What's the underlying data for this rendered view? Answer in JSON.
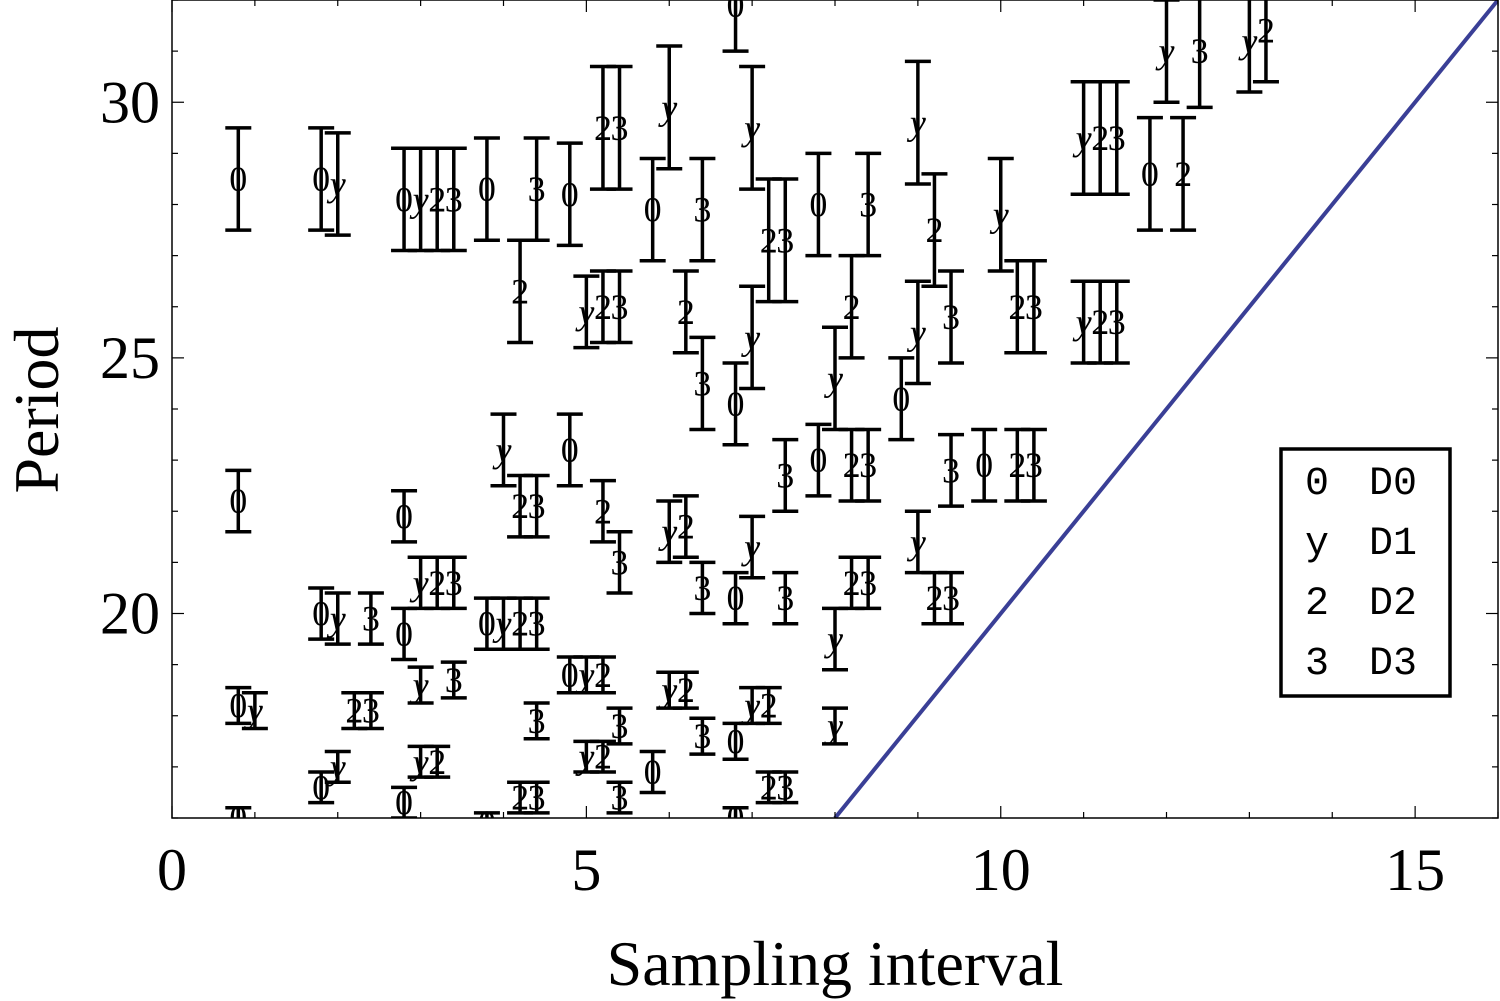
{
  "chart_data": {
    "type": "scatter",
    "xlabel": "Sampling interval",
    "ylabel": "Period",
    "xlim": [
      0,
      16
    ],
    "ylim": [
      16,
      32
    ],
    "xticks": [
      0,
      5,
      10,
      15
    ],
    "yticks": [
      20,
      25,
      30
    ],
    "minor_step": 1,
    "grid": false,
    "legend": {
      "position": "right",
      "entries": [
        {
          "symbol": "0",
          "label": "D0"
        },
        {
          "symbol": "y",
          "label": "D1"
        },
        {
          "symbol": "2",
          "label": "D2"
        },
        {
          "symbol": "3",
          "label": "D3"
        }
      ]
    },
    "reference_line": {
      "type": "y = 2x",
      "color": "#3a3f96"
    },
    "series": [
      {
        "symbol": "0",
        "points": [
          [
            0.8,
            28.5,
            1.0
          ],
          [
            0.8,
            22.2,
            0.6
          ],
          [
            0.8,
            18.2,
            0.35
          ],
          [
            0.8,
            16.0,
            0.2
          ],
          [
            1.8,
            28.5,
            1.0
          ],
          [
            1.8,
            20.0,
            0.5
          ],
          [
            1.8,
            16.6,
            0.3
          ],
          [
            2.8,
            28.1,
            1.0
          ],
          [
            2.8,
            21.9,
            0.5
          ],
          [
            2.8,
            19.6,
            0.5
          ],
          [
            2.8,
            16.3,
            0.3
          ],
          [
            3.8,
            28.3,
            1.0
          ],
          [
            3.8,
            19.8,
            0.5
          ],
          [
            3.8,
            15.9,
            0.2
          ],
          [
            4.8,
            28.2,
            1.0
          ],
          [
            4.8,
            23.2,
            0.7
          ],
          [
            4.8,
            18.8,
            0.35
          ],
          [
            5.8,
            27.9,
            1.0
          ],
          [
            5.8,
            16.9,
            0.4
          ],
          [
            6.8,
            31.9,
            0.9
          ],
          [
            6.8,
            24.1,
            0.8
          ],
          [
            6.8,
            20.3,
            0.5
          ],
          [
            6.8,
            17.5,
            0.35
          ],
          [
            6.8,
            16.0,
            0.2
          ],
          [
            7.8,
            28.0,
            1.0
          ],
          [
            7.8,
            23.0,
            0.7
          ],
          [
            8.8,
            24.2,
            0.8
          ],
          [
            9.8,
            22.9,
            0.7
          ],
          [
            11.8,
            28.6,
            1.1
          ]
        ]
      },
      {
        "symbol": "y",
        "points": [
          [
            1.0,
            18.1,
            0.35
          ],
          [
            2.0,
            28.4,
            1.0
          ],
          [
            2.0,
            19.9,
            0.5
          ],
          [
            2.0,
            17.0,
            0.3
          ],
          [
            3.0,
            28.1,
            1.0
          ],
          [
            3.0,
            20.6,
            0.5
          ],
          [
            3.0,
            18.6,
            0.35
          ],
          [
            3.0,
            17.1,
            0.3
          ],
          [
            4.0,
            19.8,
            0.5
          ],
          [
            4.0,
            23.2,
            0.7
          ],
          [
            5.0,
            25.9,
            0.7
          ],
          [
            5.0,
            18.8,
            0.35
          ],
          [
            5.0,
            17.2,
            0.3
          ],
          [
            6.0,
            29.9,
            1.2
          ],
          [
            6.0,
            21.6,
            0.6
          ],
          [
            6.0,
            18.5,
            0.35
          ],
          [
            7.0,
            29.5,
            1.2
          ],
          [
            7.0,
            25.4,
            1.0
          ],
          [
            7.0,
            21.3,
            0.6
          ],
          [
            7.0,
            18.2,
            0.35
          ],
          [
            8.0,
            24.6,
            1.0
          ],
          [
            8.0,
            19.5,
            0.6
          ],
          [
            8.0,
            17.8,
            0.35
          ],
          [
            9.0,
            29.6,
            1.2
          ],
          [
            9.0,
            25.5,
            1.0
          ],
          [
            9.0,
            21.4,
            0.6
          ],
          [
            10.0,
            27.8,
            1.1
          ],
          [
            11.0,
            29.3,
            1.1
          ],
          [
            11.0,
            25.7,
            0.8
          ],
          [
            12.0,
            31.0,
            1.0
          ],
          [
            13.0,
            31.2,
            1.0
          ]
        ]
      },
      {
        "symbol": "2",
        "points": [
          [
            2.2,
            18.1,
            0.35
          ],
          [
            3.2,
            28.1,
            1.0
          ],
          [
            3.2,
            20.6,
            0.5
          ],
          [
            3.2,
            17.1,
            0.3
          ],
          [
            4.2,
            26.3,
            1.0
          ],
          [
            4.2,
            22.1,
            0.6
          ],
          [
            4.2,
            19.8,
            0.5
          ],
          [
            4.2,
            16.4,
            0.3
          ],
          [
            5.2,
            26.0,
            0.7
          ],
          [
            5.2,
            29.5,
            1.2
          ],
          [
            5.2,
            22.0,
            0.6
          ],
          [
            5.2,
            18.8,
            0.35
          ],
          [
            5.2,
            17.2,
            0.3
          ],
          [
            6.2,
            25.9,
            0.8
          ],
          [
            6.2,
            21.7,
            0.6
          ],
          [
            6.2,
            18.5,
            0.35
          ],
          [
            7.2,
            27.3,
            1.2
          ],
          [
            7.2,
            18.2,
            0.35
          ],
          [
            7.2,
            16.6,
            0.3
          ],
          [
            8.2,
            26.0,
            1.0
          ],
          [
            8.2,
            22.9,
            0.7
          ],
          [
            8.2,
            20.6,
            0.5
          ],
          [
            9.2,
            27.5,
            1.1
          ],
          [
            9.2,
            20.3,
            0.5
          ],
          [
            10.2,
            26.0,
            0.9
          ],
          [
            10.2,
            22.9,
            0.7
          ],
          [
            11.2,
            29.3,
            1.1
          ],
          [
            11.2,
            25.7,
            0.8
          ],
          [
            12.2,
            28.6,
            1.1
          ],
          [
            13.2,
            31.4,
            1.0
          ]
        ]
      },
      {
        "symbol": "3",
        "points": [
          [
            2.4,
            19.9,
            0.5
          ],
          [
            2.4,
            18.1,
            0.35
          ],
          [
            3.4,
            28.1,
            1.0
          ],
          [
            3.4,
            20.6,
            0.5
          ],
          [
            3.4,
            18.7,
            0.35
          ],
          [
            4.4,
            28.3,
            1.0
          ],
          [
            4.4,
            22.1,
            0.6
          ],
          [
            4.4,
            19.8,
            0.5
          ],
          [
            4.4,
            17.9,
            0.35
          ],
          [
            4.4,
            16.4,
            0.3
          ],
          [
            5.4,
            26.0,
            0.7
          ],
          [
            5.4,
            29.5,
            1.2
          ],
          [
            5.4,
            21.0,
            0.6
          ],
          [
            5.4,
            17.8,
            0.35
          ],
          [
            5.4,
            16.4,
            0.3
          ],
          [
            6.4,
            27.9,
            1.0
          ],
          [
            6.4,
            24.5,
            0.9
          ],
          [
            6.4,
            20.5,
            0.5
          ],
          [
            6.4,
            17.6,
            0.35
          ],
          [
            7.4,
            27.3,
            1.2
          ],
          [
            7.4,
            22.7,
            0.7
          ],
          [
            7.4,
            20.3,
            0.5
          ],
          [
            7.4,
            16.6,
            0.3
          ],
          [
            8.4,
            28.0,
            1.0
          ],
          [
            8.4,
            22.9,
            0.7
          ],
          [
            8.4,
            20.6,
            0.5
          ],
          [
            9.4,
            25.8,
            0.9
          ],
          [
            9.4,
            22.8,
            0.7
          ],
          [
            9.4,
            20.3,
            0.5
          ],
          [
            10.4,
            26.0,
            0.9
          ],
          [
            10.4,
            22.9,
            0.7
          ],
          [
            11.4,
            29.3,
            1.1
          ],
          [
            11.4,
            25.7,
            0.8
          ],
          [
            12.4,
            31.0,
            1.1
          ]
        ]
      }
    ]
  }
}
